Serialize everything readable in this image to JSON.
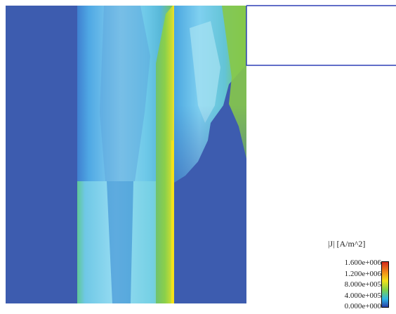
{
  "legend": {
    "title": "|J| [A/m^2]",
    "ticks": [
      "1.600e+006",
      "1.200e+006",
      "8.000e+005",
      "4.000e+005",
      "0.000e+000"
    ]
  },
  "colors": {
    "background_field": "#3d5caf",
    "outline": "#2d3fb6",
    "low": "#2a3fa6",
    "mid_low": "#2fb6e6",
    "mid": "#7fd24a",
    "mid_high": "#f3e21a",
    "high": "#d42a1c"
  }
}
